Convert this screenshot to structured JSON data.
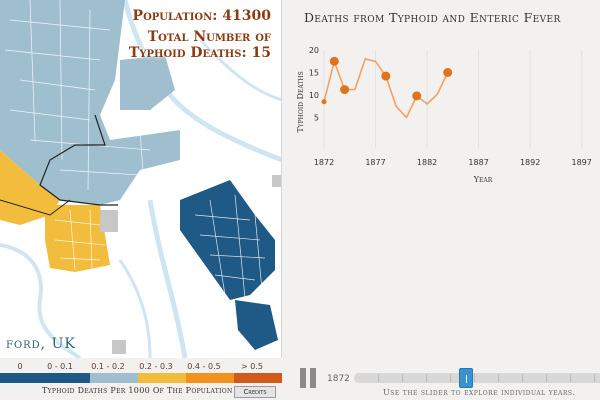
{
  "map": {
    "population": "Population: 41300",
    "deaths_line1": "Total Number of",
    "deaths_line2": "Typhoid Deaths: 15",
    "city_label": "ford, UK"
  },
  "legend": {
    "title": "Typhoid Deaths Per 1000 Of The Population",
    "credits_label": "Credits",
    "bins": [
      {
        "label": "0",
        "color": "#ffffff"
      },
      {
        "label": "0 - 0.1",
        "color": "#1f5a86"
      },
      {
        "label": "0.1 - 0.2",
        "color": "#9fbfcf"
      },
      {
        "label": "0.2 - 0.3",
        "color": "#f2bd3c"
      },
      {
        "label": "0.4 - 0.5",
        "color": "#f2921d"
      },
      {
        "label": "> 0.5",
        "color": "#cf5a1c"
      }
    ]
  },
  "chart": {
    "title": "Deaths from Typhoid and Enteric Fever",
    "ylabel": "Typhoid Deaths",
    "xlabel": "Year"
  },
  "chart_data": {
    "type": "line",
    "title": "Deaths from Typhoid and Enteric Fever",
    "xlabel": "Year",
    "ylabel": "Typhoid Deaths",
    "xlim": [
      1872,
      1898
    ],
    "ylim": [
      0,
      20
    ],
    "x_ticks": [
      1872,
      1877,
      1882,
      1887,
      1892,
      1897
    ],
    "y_ticks": [
      5,
      10,
      15,
      20
    ],
    "line_color": "#f2a163",
    "marker_color": "#e0731c",
    "x": [
      1872,
      1873,
      1874,
      1875,
      1876,
      1877,
      1878,
      1879,
      1880,
      1881,
      1882,
      1883,
      1884
    ],
    "y": [
      8.5,
      17.5,
      11.2,
      11.2,
      18,
      17.5,
      14.2,
      7.5,
      5,
      9.8,
      8,
      10.2,
      15
    ],
    "highlighted_x": [
      1872,
      1873,
      1874,
      1878,
      1881,
      1884
    ]
  },
  "timeline": {
    "start_year": "1872",
    "handle_label": "1",
    "hint": "Use the slider to explore individual years."
  }
}
